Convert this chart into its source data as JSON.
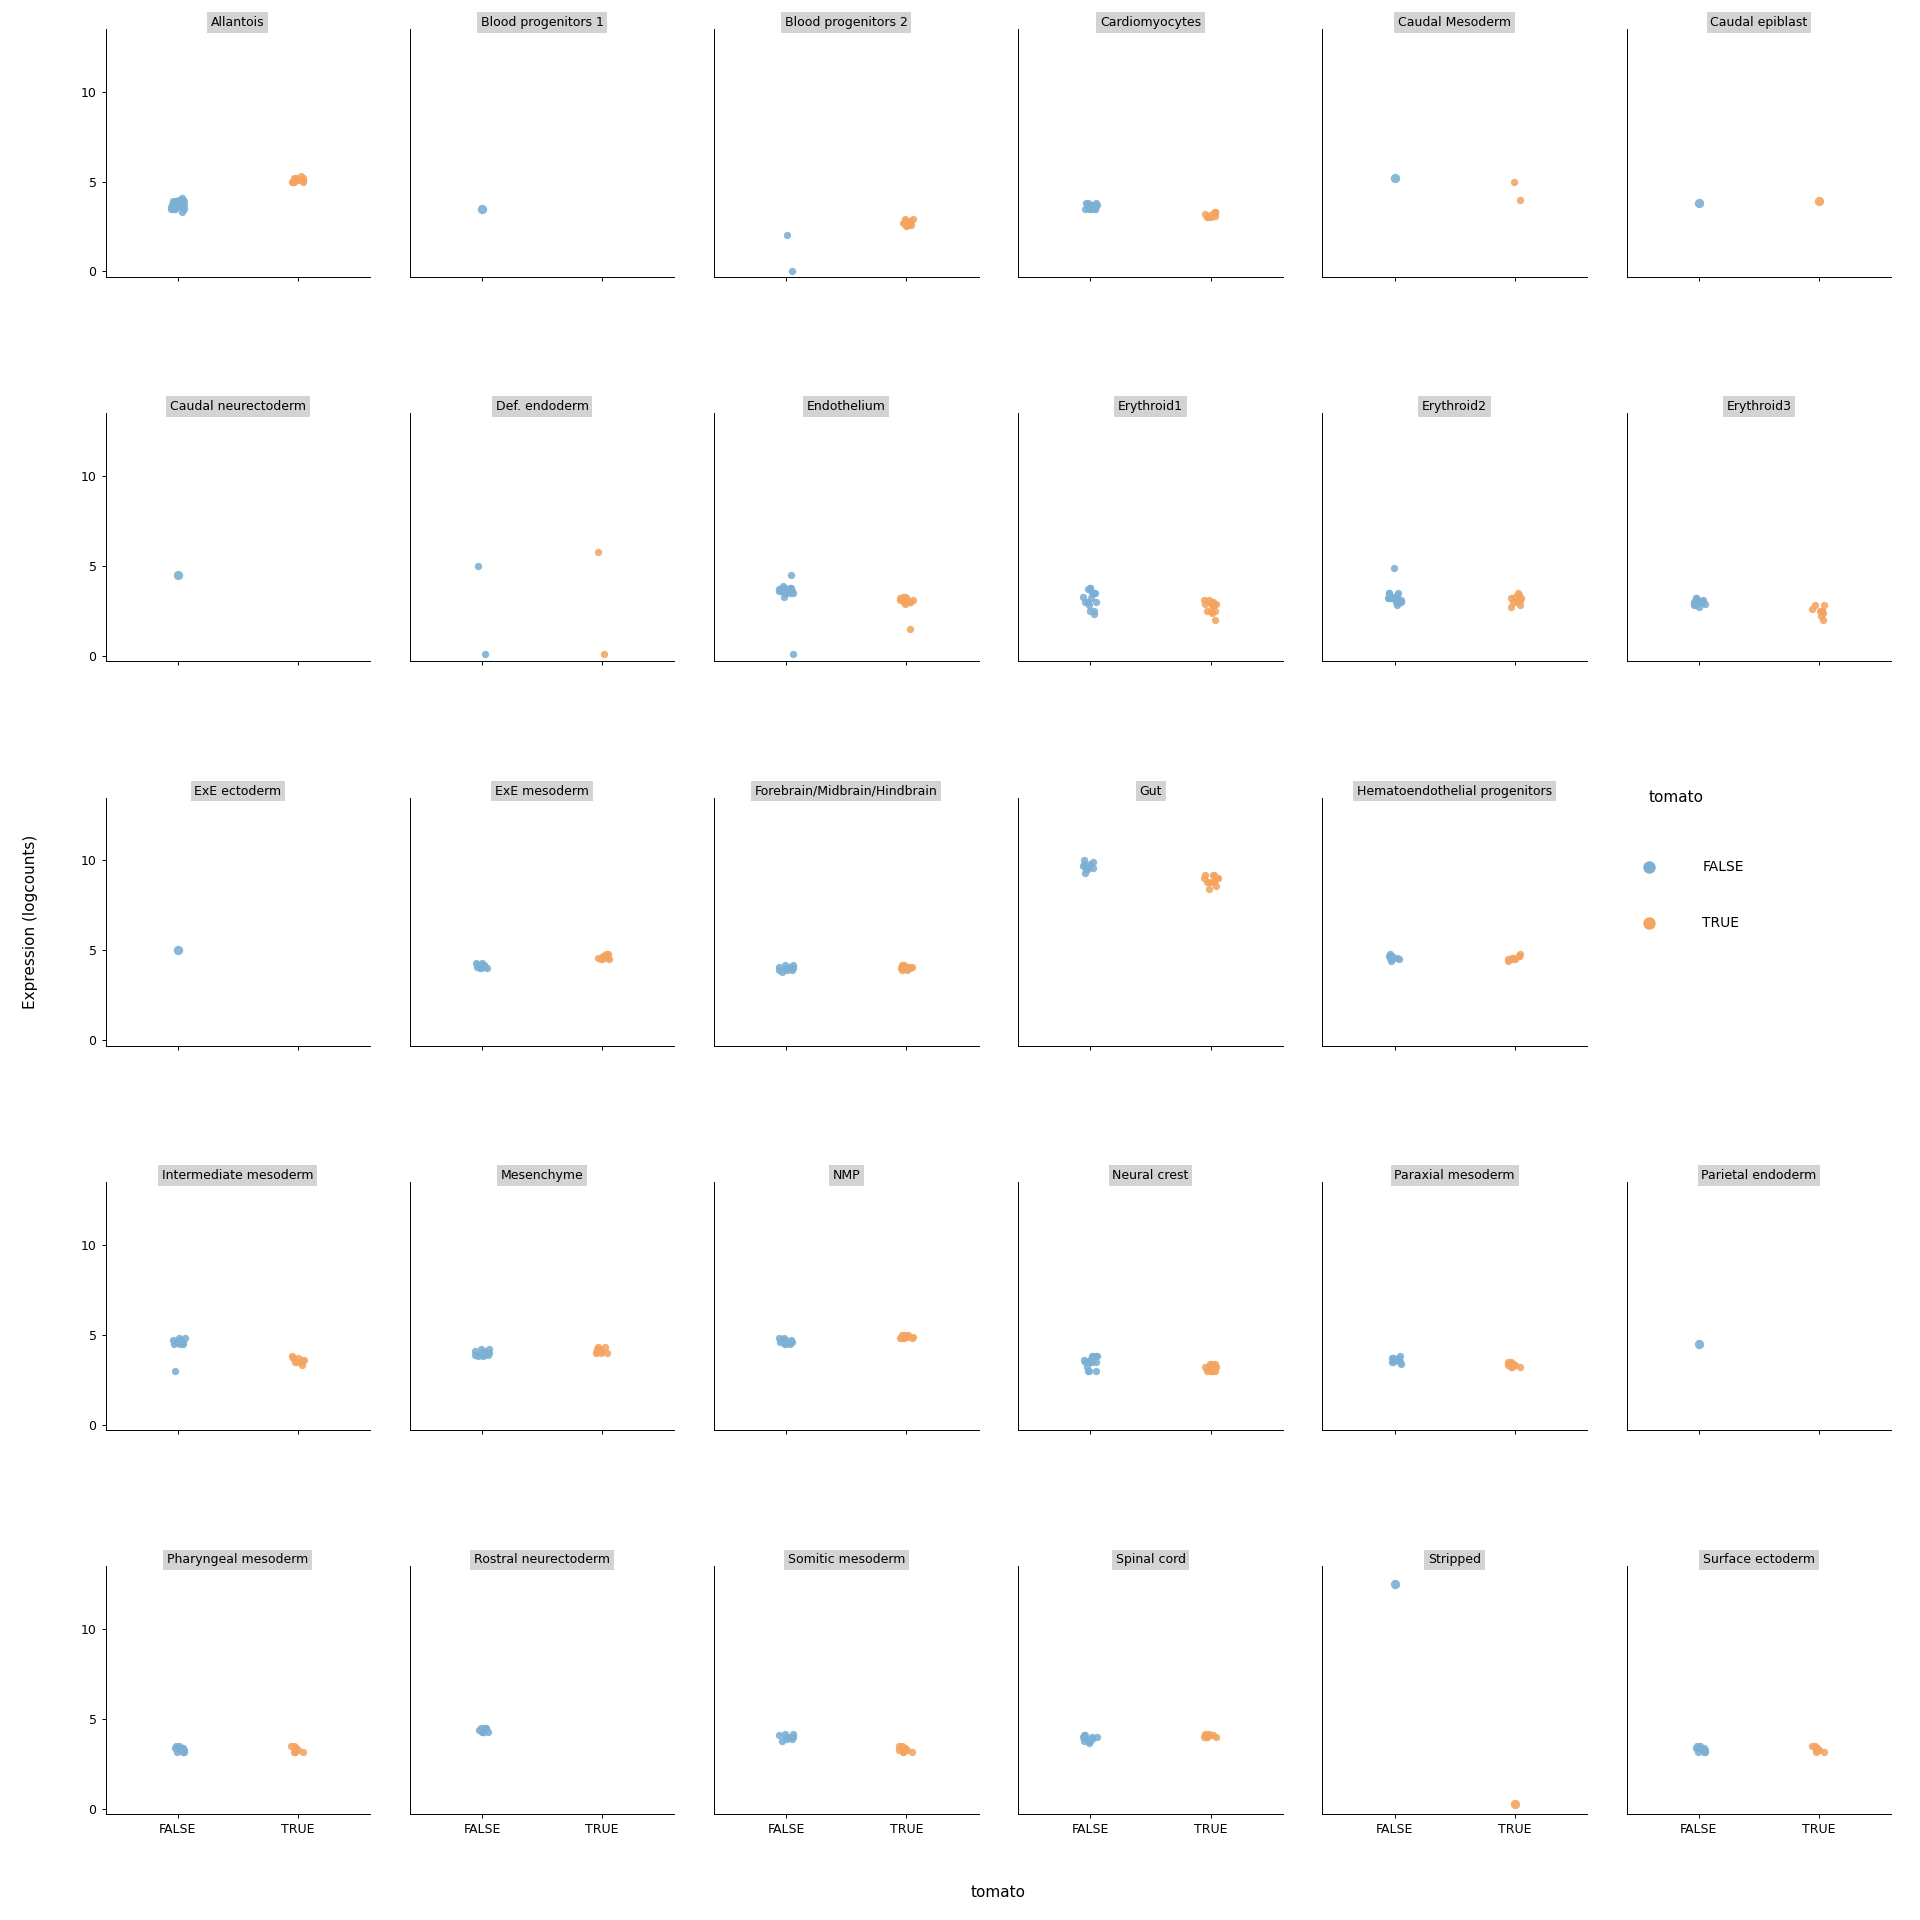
{
  "facet_labels": [
    "Allantois",
    "Blood progenitors 1",
    "Blood progenitors 2",
    "Cardiomyocytes",
    "Caudal Mesoderm",
    "Caudal epiblast",
    "Caudal neurectoderm",
    "Def. endoderm",
    "Endothelium",
    "Erythroid1",
    "Erythroid2",
    "Erythroid3",
    "ExE ectoderm",
    "ExE mesoderm",
    "Forebrain/Midbrain/Hindbrain",
    "Gut",
    "Hematoendothelial progenitors",
    "Intermediate mesoderm",
    "Mesenchyme",
    "NMP",
    "Neural crest",
    "Paraxial mesoderm",
    "Parietal endoderm",
    "Pharyngeal mesoderm",
    "Rostral neurectoderm",
    "Somitic mesoderm",
    "Spinal cord",
    "Stripped",
    "Surface ectoderm"
  ],
  "ncols": 6,
  "nrows": 5,
  "ylim": [
    -0.3,
    13.5
  ],
  "yticks": [
    0,
    5,
    10
  ],
  "color_false": "#7BAFD4",
  "color_true": "#F4A460",
  "violin_edge_color": "#888888",
  "violin_fill_color": "#f5f5f5",
  "background_color": "#ffffff",
  "facet_header_color": "#d3d3d3",
  "ylabel": "Expression (logcounts)",
  "xlabel": "tomato",
  "legend_row": 2,
  "legend_col": 5,
  "data": {
    "Allantois": {
      "FALSE": [
        3.3,
        3.5,
        3.6,
        3.8,
        3.9,
        4.0,
        4.1,
        3.7,
        3.6,
        3.5,
        3.8,
        4.0,
        3.7,
        3.5,
        3.9,
        3.7,
        3.8,
        3.6,
        3.9,
        3.5
      ],
      "TRUE": [
        5.0,
        5.0,
        5.1,
        5.1,
        5.2,
        5.2,
        5.1,
        5.0,
        5.3,
        5.2,
        5.1,
        5.0
      ]
    },
    "Blood progenitors 1": {
      "FALSE": [
        3.5
      ],
      "TRUE": []
    },
    "Blood progenitors 2": {
      "FALSE": [
        2.0,
        0.05
      ],
      "TRUE": [
        2.5,
        2.6,
        2.7,
        2.8,
        2.9,
        2.6,
        2.7,
        2.8,
        2.6,
        2.7,
        2.8,
        2.9
      ]
    },
    "Cardiomyocytes": {
      "FALSE": [
        3.5,
        3.6,
        3.7,
        3.8,
        3.5,
        3.6,
        3.7,
        3.8,
        3.5,
        3.7,
        3.6,
        3.8,
        3.5,
        3.7,
        3.5
      ],
      "TRUE": [
        3.0,
        3.1,
        3.2,
        3.3,
        3.0,
        3.1,
        3.2,
        3.3,
        3.0
      ]
    },
    "Caudal Mesoderm": {
      "FALSE": [
        5.2
      ],
      "TRUE": [
        4.0,
        5.0
      ]
    },
    "Caudal epiblast": {
      "FALSE": [
        3.8
      ],
      "TRUE": [
        3.9
      ]
    },
    "Caudal neurectoderm": {
      "FALSE": [
        4.5
      ],
      "TRUE": []
    },
    "Def. endoderm": {
      "FALSE": [
        5.0,
        0.1
      ],
      "TRUE": [
        0.1,
        5.8
      ]
    },
    "Endothelium": {
      "FALSE": [
        0.1,
        4.5,
        3.3,
        3.5,
        3.6,
        3.7,
        3.8,
        3.5,
        3.6,
        3.7,
        3.8,
        3.5,
        3.6,
        3.8,
        3.7,
        3.5,
        3.6,
        3.9,
        3.7,
        3.8
      ],
      "TRUE": [
        1.5,
        2.9,
        3.0,
        3.1,
        3.2,
        3.0,
        3.1,
        3.2,
        3.3,
        3.0,
        3.1,
        3.2,
        3.3,
        3.0,
        3.1
      ]
    },
    "Erythroid1": {
      "FALSE": [
        2.3,
        2.5,
        2.8,
        3.0,
        3.5,
        3.8,
        3.5,
        3.0,
        3.2,
        3.5,
        3.7,
        3.0,
        3.3,
        3.5,
        3.8,
        2.5
      ],
      "TRUE": [
        2.0,
        2.4,
        2.5,
        2.8,
        2.9,
        3.0,
        3.1,
        2.5,
        2.8,
        2.9,
        3.0,
        3.1,
        2.5,
        2.8
      ]
    },
    "Erythroid2": {
      "FALSE": [
        2.8,
        3.0,
        3.1,
        3.2,
        3.3,
        3.5,
        3.0,
        3.2,
        3.4,
        3.5,
        3.0,
        3.2,
        3.1,
        3.3,
        3.5,
        3.0,
        3.2,
        4.9
      ],
      "TRUE": [
        2.7,
        2.8,
        3.0,
        3.1,
        3.2,
        3.4,
        3.0,
        3.2,
        3.3,
        3.5
      ]
    },
    "Erythroid3": {
      "FALSE": [
        2.7,
        2.8,
        3.0,
        3.1,
        3.2,
        3.0,
        2.9,
        3.1,
        3.0,
        2.8,
        3.0,
        3.2,
        3.1,
        3.0,
        2.9
      ],
      "TRUE": [
        2.0,
        2.2,
        2.4,
        2.5,
        2.8,
        2.5,
        2.6,
        2.8,
        2.5
      ]
    },
    "ExE ectoderm": {
      "FALSE": [
        5.0
      ],
      "TRUE": []
    },
    "ExE mesoderm": {
      "FALSE": [
        4.0,
        4.1,
        4.2,
        4.3,
        4.0,
        4.1,
        4.2,
        4.3,
        4.0,
        4.1,
        4.2
      ],
      "TRUE": [
        4.5,
        4.6,
        4.7,
        4.8,
        4.5,
        4.6,
        4.7,
        4.8,
        4.5
      ]
    },
    "Forebrain/Midbrain/Hindbrain": {
      "FALSE": [
        3.8,
        3.9,
        4.0,
        4.1,
        4.2,
        4.0,
        3.9,
        4.0,
        4.2,
        4.0,
        3.9,
        4.1,
        4.0
      ],
      "TRUE": [
        3.9,
        4.0,
        4.1,
        4.2,
        4.0,
        4.1,
        4.2,
        4.0,
        4.1,
        3.9,
        4.0
      ]
    },
    "Gut": {
      "FALSE": [
        9.3,
        9.5,
        9.7,
        9.8,
        10.0,
        9.6,
        9.9,
        9.7,
        9.5,
        9.8
      ],
      "TRUE": [
        8.4,
        8.6,
        8.8,
        9.0,
        9.2,
        8.8,
        9.0,
        9.2,
        8.8,
        9.0,
        9.2,
        8.8
      ]
    },
    "Hematoendothelial progenitors": {
      "FALSE": [
        4.4,
        4.5,
        4.6,
        4.7,
        4.8,
        4.5,
        4.6,
        4.7,
        4.5,
        4.6,
        4.7
      ],
      "TRUE": [
        4.4,
        4.5,
        4.6,
        4.7,
        4.8,
        4.5,
        4.6,
        4.7,
        4.5
      ]
    },
    "Intermediate mesoderm": {
      "FALSE": [
        3.0,
        4.5,
        4.6,
        4.7,
        4.8,
        4.5,
        4.6,
        4.7,
        4.5,
        4.6,
        4.7,
        4.8
      ],
      "TRUE": [
        3.3,
        3.5,
        3.6,
        3.7,
        3.8,
        3.5,
        3.6,
        3.7,
        3.5
      ]
    },
    "Mesenchyme": {
      "FALSE": [
        3.8,
        3.9,
        4.0,
        4.1,
        4.2,
        4.0,
        3.9,
        4.0,
        4.2,
        4.0,
        3.9,
        4.1,
        4.0,
        3.8
      ],
      "TRUE": [
        4.0,
        4.1,
        4.2,
        4.3,
        4.0,
        4.1,
        4.2,
        4.3,
        4.0,
        4.1,
        4.2
      ]
    },
    "NMP": {
      "FALSE": [
        4.5,
        4.6,
        4.7,
        4.8,
        4.5,
        4.6,
        4.7,
        4.8,
        4.5,
        4.6,
        4.7
      ],
      "TRUE": [
        4.8,
        4.9,
        5.0,
        4.8,
        4.9,
        5.0,
        4.8,
        4.9,
        5.0,
        4.8
      ]
    },
    "Neural crest": {
      "FALSE": [
        3.0,
        3.2,
        3.5,
        3.7,
        3.8,
        3.5,
        3.6,
        3.8,
        3.5,
        3.0,
        3.5,
        3.8,
        3.5,
        3.6,
        3.8,
        3.0
      ],
      "TRUE": [
        3.0,
        3.1,
        3.2,
        3.4,
        3.0,
        3.2,
        3.4,
        3.0,
        3.2,
        3.4,
        3.0,
        3.2
      ]
    },
    "Paraxial mesoderm": {
      "FALSE": [
        3.4,
        3.5,
        3.6,
        3.7,
        3.8,
        3.5,
        3.6,
        3.7,
        3.5,
        3.6,
        3.7
      ],
      "TRUE": [
        3.2,
        3.3,
        3.4,
        3.5,
        3.2,
        3.3,
        3.4,
        3.5,
        3.2,
        3.3,
        3.4
      ]
    },
    "Parietal endoderm": {
      "FALSE": [
        4.5
      ],
      "TRUE": []
    },
    "Pharyngeal mesoderm": {
      "FALSE": [
        3.2,
        3.3,
        3.4,
        3.5,
        3.2,
        3.3,
        3.4,
        3.5,
        3.2,
        3.3,
        3.4
      ],
      "TRUE": [
        3.2,
        3.3,
        3.4,
        3.5,
        3.2,
        3.3,
        3.4,
        3.5,
        3.2
      ]
    },
    "Rostral neurectoderm": {
      "FALSE": [
        4.3,
        4.4,
        4.5,
        4.4,
        4.3,
        4.5,
        4.4,
        4.3,
        4.5,
        4.4,
        4.3,
        4.5,
        4.4
      ],
      "TRUE": []
    },
    "Somitic mesoderm": {
      "FALSE": [
        3.8,
        3.9,
        4.0,
        4.1,
        4.2,
        4.0,
        3.9,
        4.0,
        4.2,
        4.0
      ],
      "TRUE": [
        3.2,
        3.3,
        3.4,
        3.5,
        3.2,
        3.3,
        3.4,
        3.5,
        3.2,
        3.3
      ]
    },
    "Spinal cord": {
      "FALSE": [
        3.7,
        3.8,
        3.9,
        4.0,
        4.1,
        4.0,
        3.9,
        4.0,
        4.1,
        3.8
      ],
      "TRUE": [
        4.0,
        4.1,
        4.2,
        4.0,
        4.1,
        4.2,
        4.0,
        4.1,
        4.0,
        4.1
      ]
    },
    "Stripped": {
      "FALSE": [
        12.5
      ],
      "TRUE": [
        0.3
      ]
    },
    "Surface ectoderm": {
      "FALSE": [
        3.2,
        3.3,
        3.4,
        3.5,
        3.2,
        3.3,
        3.4,
        3.5,
        3.2,
        3.3
      ],
      "TRUE": [
        3.2,
        3.3,
        3.4,
        3.5,
        3.2,
        3.3,
        3.4,
        3.5
      ]
    }
  }
}
